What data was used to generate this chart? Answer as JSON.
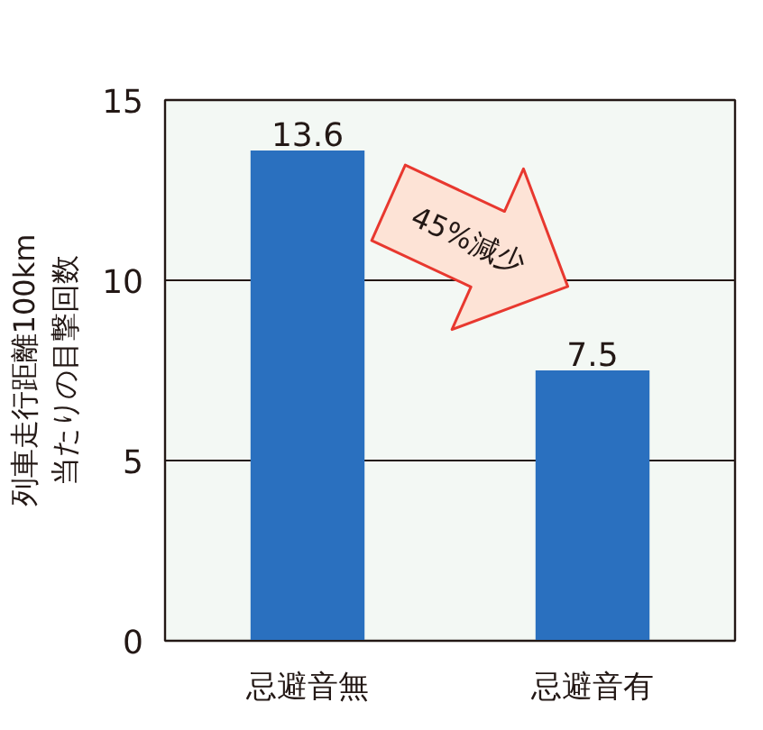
{
  "chart_data": {
    "type": "bar",
    "ylabel": "列車走行距離100km\n当たりの目撃回数",
    "categories": [
      "忌避音無",
      "忌避音有"
    ],
    "values": [
      13.6,
      7.5
    ],
    "color": "#2a70bf",
    "ylim": [
      0,
      15
    ],
    "yticks": [
      0,
      5,
      10,
      15
    ],
    "grid": "y",
    "data_labels": true,
    "annotations": [
      "45%減少"
    ]
  }
}
